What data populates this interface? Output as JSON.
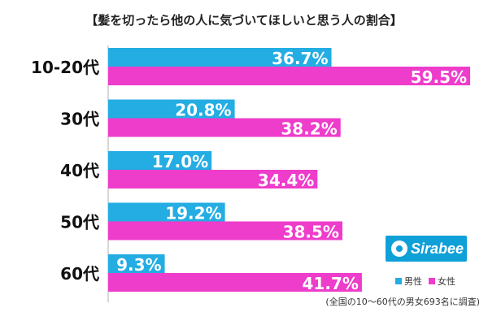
{
  "header": {
    "title": "【髪を切ったら他の人に気づいてほしいと思う人の割合】"
  },
  "colors": {
    "male": "#24ade3",
    "female": "#ee3ccb",
    "brand": "#0fa0d8"
  },
  "brand": {
    "logo_text": "Sirabee"
  },
  "legend": {
    "male": "男性",
    "female": "女性"
  },
  "footnote": "(全国の10〜60代の男女693名に調査)",
  "chart_data": {
    "type": "bar",
    "orientation": "horizontal",
    "title": "【髪を切ったら他の人に気づいてほしいと思う人の割合】",
    "categories": [
      "10-20代",
      "30代",
      "40代",
      "50代",
      "60代"
    ],
    "series": [
      {
        "name": "男性",
        "values": [
          36.7,
          20.8,
          17.0,
          19.2,
          9.3
        ],
        "labels": [
          "36.7%",
          "20.8%",
          "17.0%",
          "19.2%",
          "9.3%"
        ]
      },
      {
        "name": "女性",
        "values": [
          59.5,
          38.2,
          34.4,
          38.5,
          41.7
        ],
        "labels": [
          "59.5%",
          "38.2%",
          "34.4%",
          "38.5%",
          "41.7%"
        ]
      }
    ],
    "xlim": [
      0,
      60
    ],
    "unit": "%",
    "legend_position": "bottom-right",
    "grid": false
  }
}
